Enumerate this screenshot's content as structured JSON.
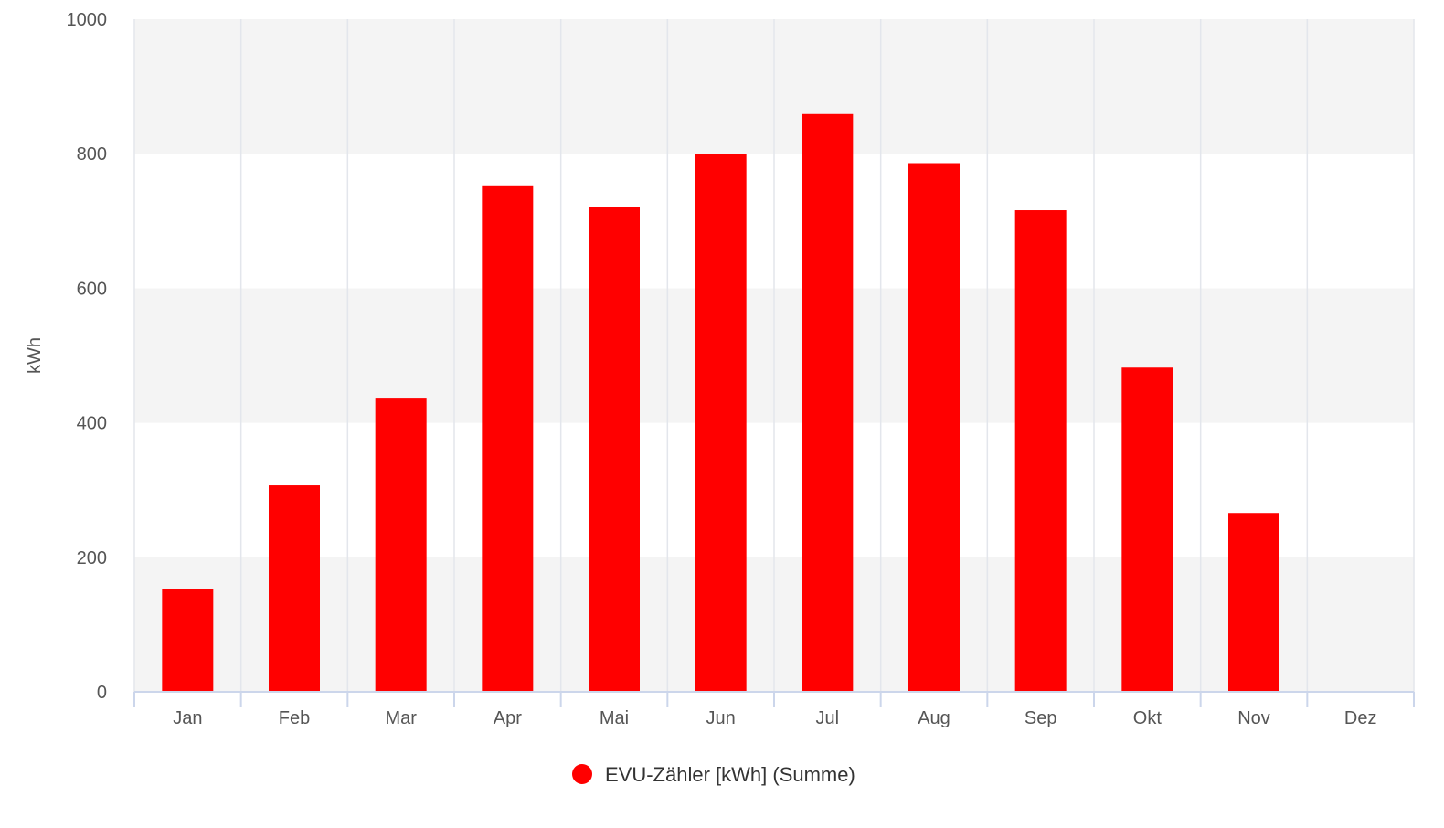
{
  "chart_data": {
    "type": "bar",
    "categories": [
      "Jan",
      "Feb",
      "Mar",
      "Apr",
      "Mai",
      "Jun",
      "Jul",
      "Aug",
      "Sep",
      "Okt",
      "Nov",
      "Dez"
    ],
    "series": [
      {
        "name": "EVU-Zähler [kWh] (Summe)",
        "color": "#ff0000",
        "values": [
          153,
          307,
          436,
          753,
          721,
          800,
          859,
          786,
          716,
          482,
          266,
          null
        ]
      }
    ],
    "ylabel": "kWh",
    "xlabel": "",
    "ylim": [
      0,
      1000
    ],
    "yticks": [
      "0",
      "200",
      "400",
      "600",
      "800",
      "1000"
    ],
    "grid": true,
    "banded_background": true,
    "band_color": "#f4f4f4",
    "legend_position": "bottom-center"
  }
}
